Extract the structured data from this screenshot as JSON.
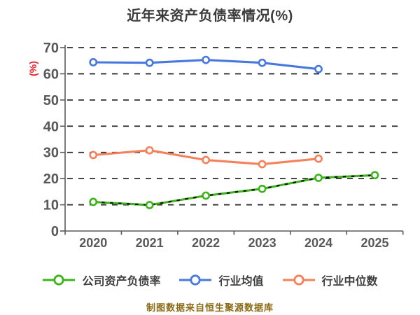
{
  "title": "近年来资产负债率情况(%)",
  "y_axis_title": "(%)",
  "footer": "制图数据来自恒生聚源数据库",
  "colors": {
    "background": "#ffffff",
    "title": "#3b3b3b",
    "y_axis_title": "#e8232a",
    "axis_line": "#5a5a5a",
    "tick_label": "#585858",
    "gridline": "#2b2b2b",
    "footer": "#8a6a15",
    "company": "#3cb41a",
    "company_dash_overlay": "#141414",
    "industry_mean": "#4678dd",
    "industry_median": "#f5815a",
    "marker_fill": "#ffffff"
  },
  "legend": [
    {
      "label": "公司资产负债率",
      "color": "#3cb41a"
    },
    {
      "label": "行业均值",
      "color": "#4678dd"
    },
    {
      "label": "行业中位数",
      "color": "#f5815a"
    }
  ],
  "chart_data": {
    "type": "line",
    "title": "近年来资产负债率情况(%)",
    "categories": [
      "2020",
      "2021",
      "2022",
      "2023",
      "2024",
      "2025"
    ],
    "series": [
      {
        "name": "公司资产负债率",
        "key": "company",
        "color": "#3cb41a",
        "line_style": "solid-with-dark-dash-overlay",
        "values": [
          11.1,
          9.9,
          13.5,
          16.1,
          20.3,
          21.3
        ]
      },
      {
        "name": "行业均值",
        "key": "industry_mean",
        "color": "#4678dd",
        "line_style": "solid",
        "values": [
          64.4,
          64.2,
          65.3,
          64.2,
          61.8,
          null
        ]
      },
      {
        "name": "行业中位数",
        "key": "industry_median",
        "color": "#f5815a",
        "line_style": "solid",
        "values": [
          29.0,
          30.8,
          27.1,
          25.5,
          27.6,
          null
        ]
      }
    ],
    "xlabel": "",
    "ylabel": "(%)",
    "ylim": [
      0,
      70
    ],
    "ytick_step": 10,
    "grid": "horizontal-dashed",
    "marker": "circle-white-fill-colored-ring",
    "legend_position": "bottom"
  }
}
